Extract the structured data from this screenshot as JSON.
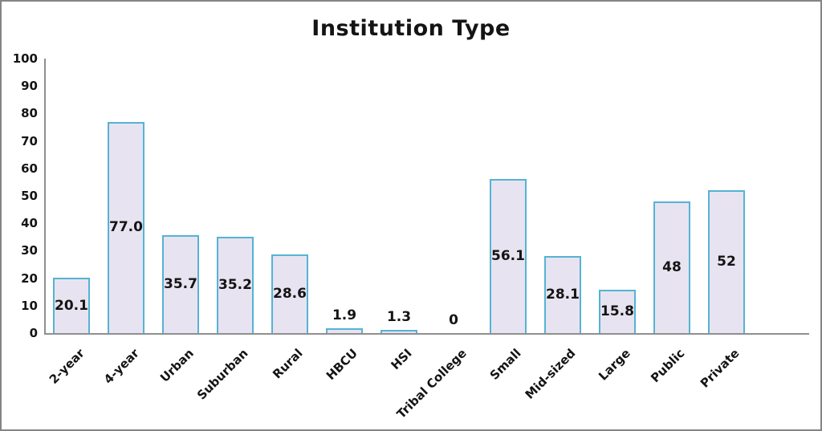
{
  "chart_data": {
    "type": "bar",
    "title": "Institution Type",
    "categories": [
      "2-year",
      "4-year",
      "Urban",
      "Suburban",
      "Rural",
      "HBCU",
      "HSI",
      "Tribal College",
      "Small",
      "Mid-sized",
      "Large",
      "Public",
      "Private"
    ],
    "values": [
      20.1,
      77.0,
      35.7,
      35.2,
      28.6,
      1.9,
      1.3,
      0,
      56.1,
      28.1,
      15.8,
      48,
      52
    ],
    "value_labels": [
      "20.1",
      "77.0",
      "35.7",
      "35.2",
      "28.6",
      "1.9",
      "1.3",
      "0",
      "56.1",
      "28.1",
      "15.8",
      "48",
      "52"
    ],
    "xlabel": "",
    "ylabel": "",
    "ylim": [
      0,
      100
    ],
    "yticks": [
      0,
      10,
      20,
      30,
      40,
      50,
      60,
      70,
      80,
      90,
      100
    ],
    "grid": false,
    "legend": null,
    "xtick_rotation_degrees": 45,
    "colors": {
      "bar_fill": "#e8e3f0",
      "bar_border": "#55b3d4",
      "axis_line": "#8f8f8f",
      "text": "#141414",
      "background": "#ffffff",
      "frame_border": "#848484"
    }
  }
}
